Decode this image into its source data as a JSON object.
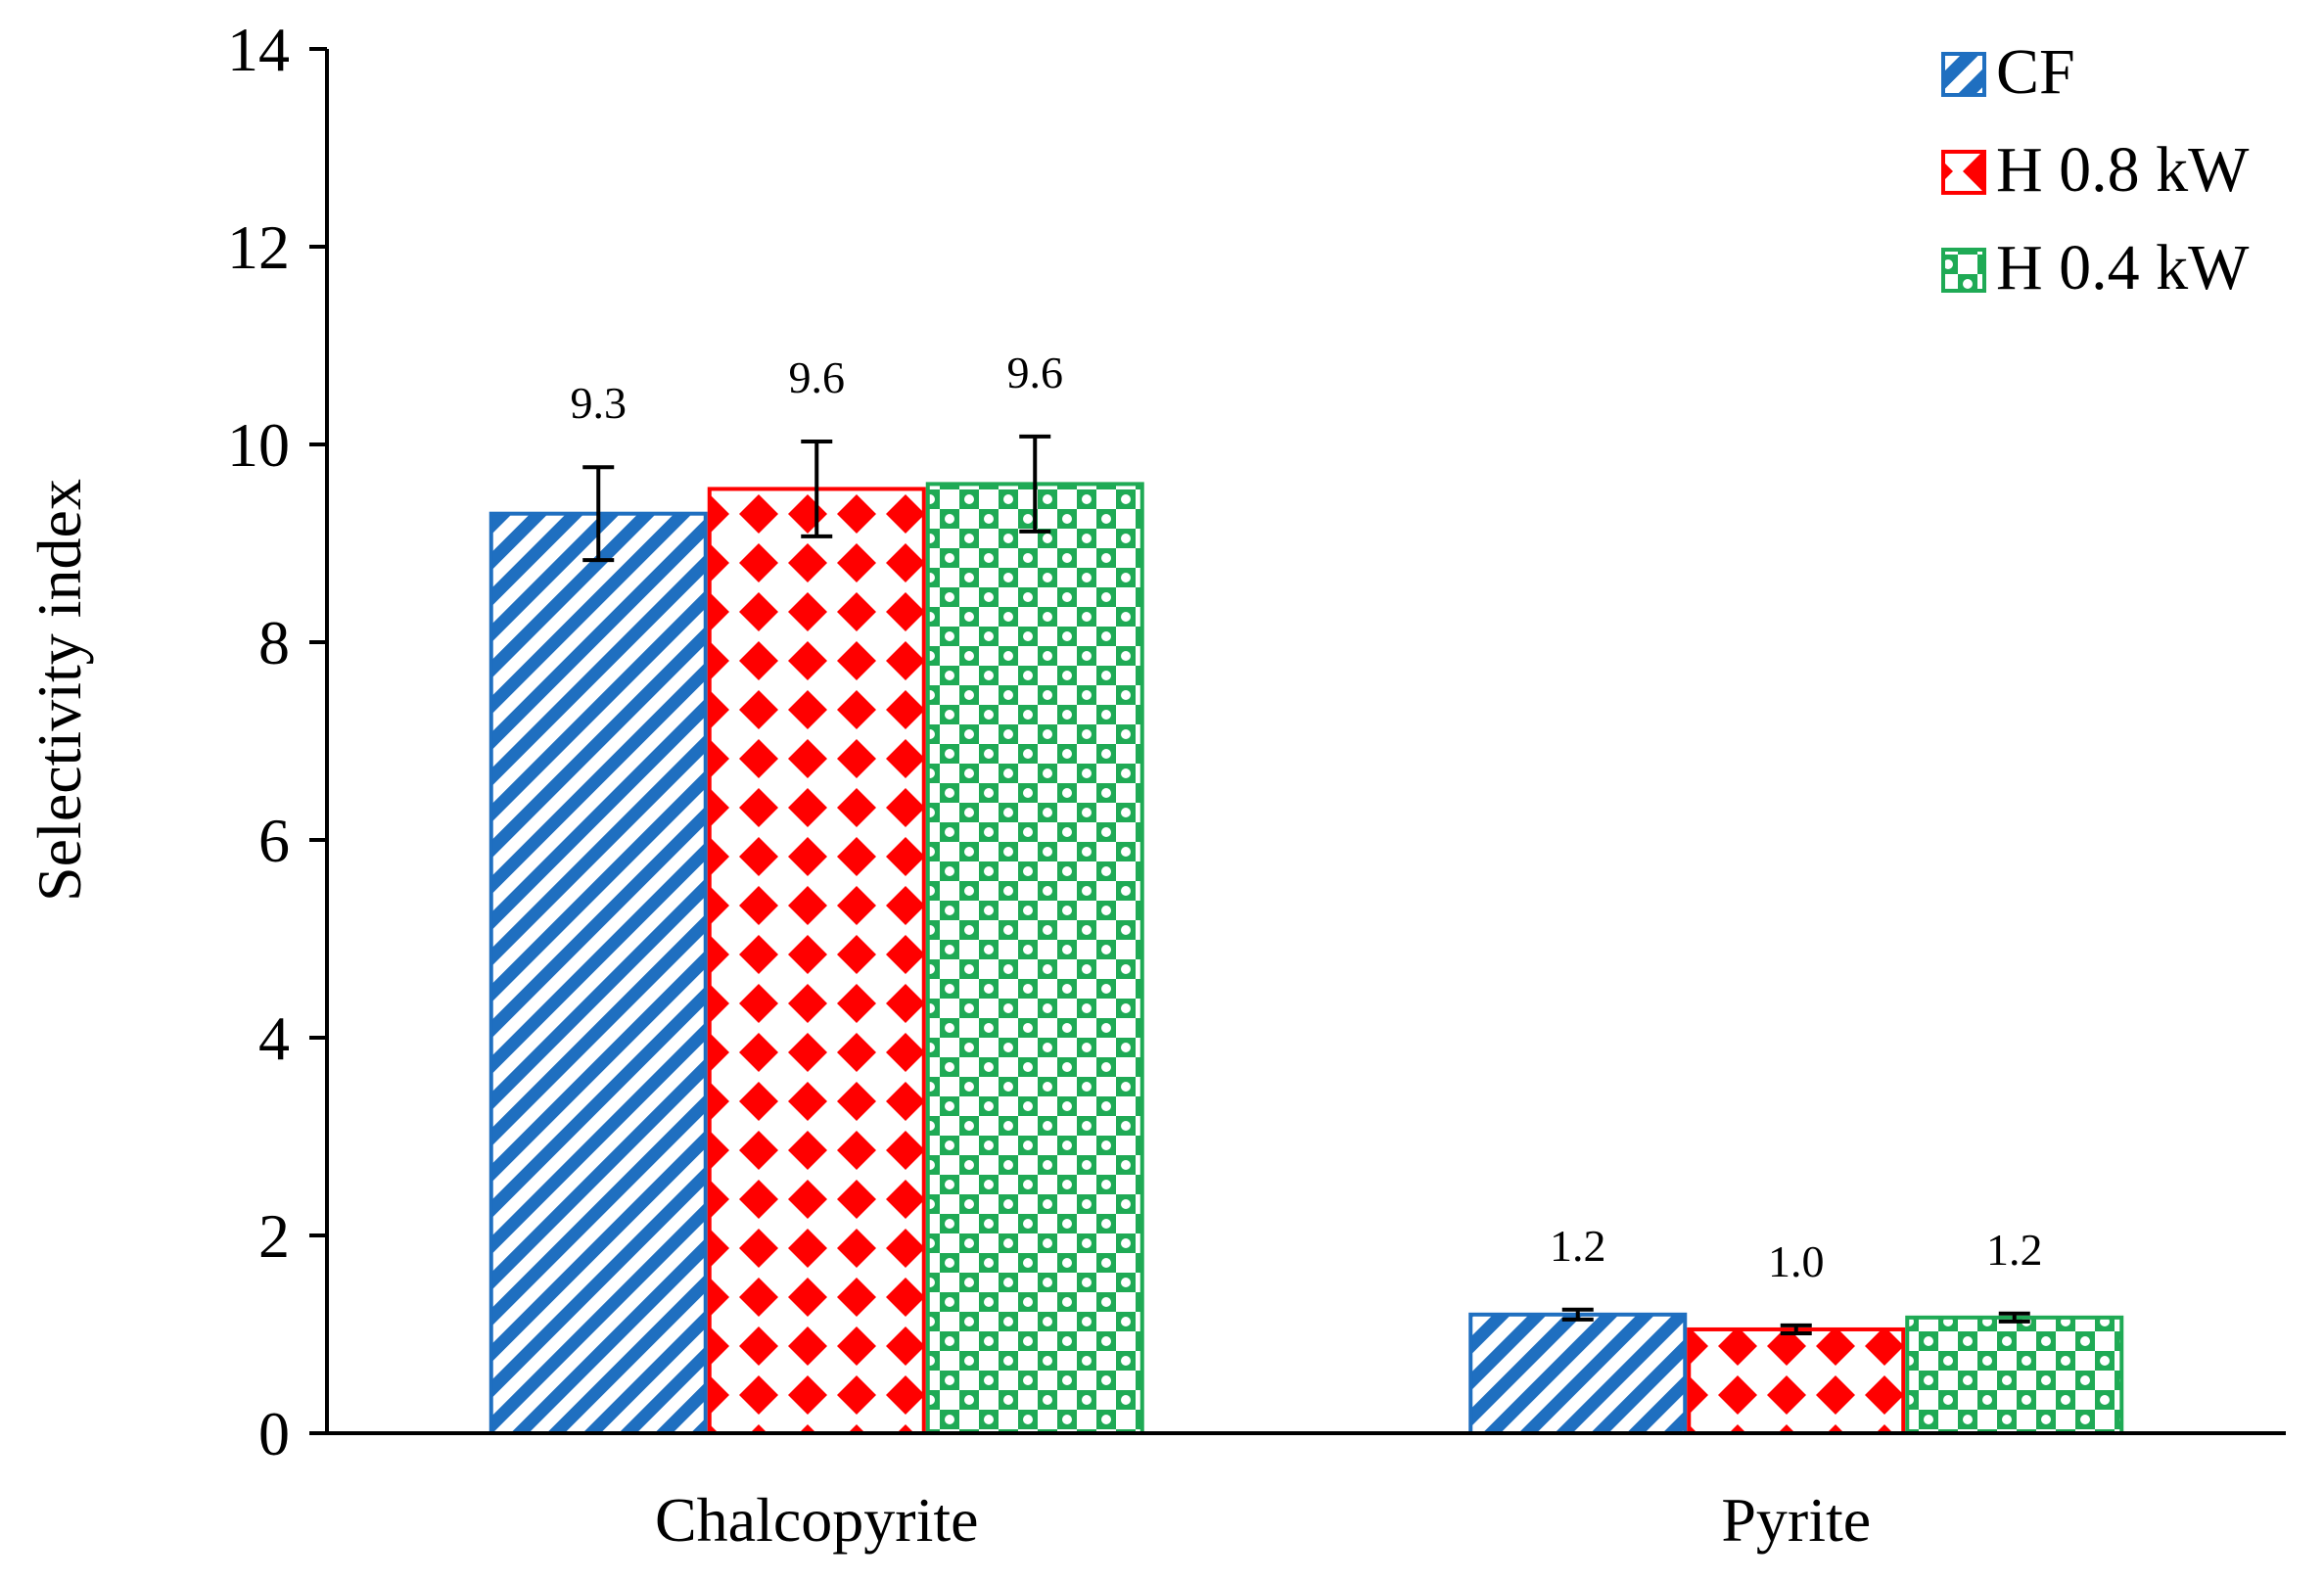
{
  "chart_data": {
    "type": "bar",
    "title": "",
    "xlabel": "",
    "ylabel": "Selectivity index",
    "ylim": [
      0,
      14
    ],
    "yticks": [
      0,
      2,
      4,
      6,
      8,
      10,
      12,
      14
    ],
    "categories": [
      "Chalcopyrite",
      "Pyrite"
    ],
    "legend_position": "top-right",
    "grid": false,
    "series": [
      {
        "name": "CF",
        "color": "#1f6fc0",
        "pattern": "diagonal-stripes",
        "values": [
          9.3,
          1.2
        ],
        "errors": [
          0.47,
          0.05
        ],
        "labels": [
          "9.3",
          "1.2"
        ]
      },
      {
        "name": "H 0.8 kW",
        "color": "#ff0000",
        "pattern": "diamonds",
        "values": [
          9.55,
          1.05
        ],
        "errors": [
          0.48,
          0.04
        ],
        "labels": [
          "9.6",
          "1.0"
        ]
      },
      {
        "name": "H 0.4 kW",
        "color": "#1faa55",
        "pattern": "checker",
        "values": [
          9.6,
          1.17
        ],
        "errors": [
          0.48,
          0.04
        ],
        "labels": [
          "9.6",
          "1.2"
        ]
      }
    ]
  }
}
